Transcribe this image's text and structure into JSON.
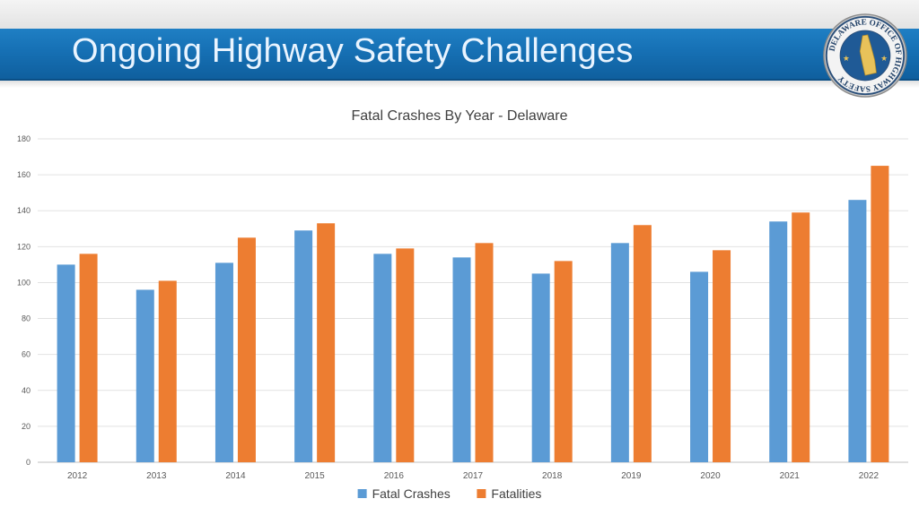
{
  "slide": {
    "title": "Ongoing Highway Safety Challenges",
    "logo": {
      "icon": "delaware-state-seal",
      "ring_text": "DELAWARE OFFICE OF HIGHWAY SAFETY"
    }
  },
  "chart_data": {
    "type": "bar",
    "title": "Fatal Crashes By Year - Delaware",
    "xlabel": "",
    "ylabel": "",
    "categories": [
      "2012",
      "2013",
      "2014",
      "2015",
      "2016",
      "2017",
      "2018",
      "2019",
      "2020",
      "2021",
      "2022"
    ],
    "series": [
      {
        "name": "Fatal Crashes",
        "color": "#5b9bd5",
        "values": [
          110,
          96,
          111,
          129,
          116,
          114,
          105,
          122,
          106,
          134,
          146
        ]
      },
      {
        "name": "Fatalities",
        "color": "#ed7d31",
        "values": [
          116,
          101,
          125,
          133,
          119,
          122,
          112,
          132,
          118,
          139,
          165
        ]
      }
    ],
    "ylim": [
      0,
      180
    ],
    "yticks": [
      "0",
      "20",
      "40",
      "60",
      "80",
      "100",
      "120",
      "140",
      "160",
      "180"
    ],
    "grid": true,
    "legend_position": "bottom"
  }
}
